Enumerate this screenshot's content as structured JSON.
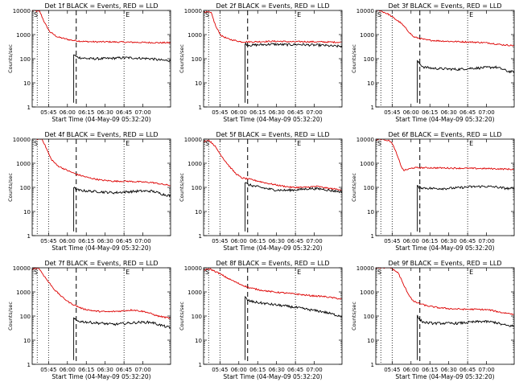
{
  "figure": {
    "ylabel": "Counts/sec",
    "xlabel": "Start Time (04-May-09 05:32:20)"
  },
  "chart_data": [
    {
      "type": "line",
      "title": "Det 1f BLACK = Events, RED = LLD",
      "xlabel": "Start Time (04-May-09 05:32:20)",
      "ylabel": "Counts/sec",
      "ylim": [
        1,
        10000
      ],
      "yscale": "log",
      "x_ticks": [
        "05:45",
        "06:00",
        "06:15",
        "06:30",
        "06:45",
        "07:00"
      ],
      "y_ticks": [
        "1",
        "10",
        "100",
        "1000",
        "10000"
      ],
      "series": [
        {
          "name": "LLD",
          "color": "#dd0000",
          "x": [
            0,
            6,
            10,
            14,
            20,
            30,
            40,
            50,
            60,
            70,
            80,
            90,
            100,
            110
          ],
          "y": [
            10000,
            9000,
            3000,
            1300,
            800,
            600,
            520,
            500,
            500,
            490,
            480,
            470,
            460,
            460
          ]
        },
        {
          "name": "Events",
          "color": "#000000",
          "x": [
            33,
            35,
            38,
            45,
            55,
            65,
            75,
            85,
            95,
            100,
            105,
            110
          ],
          "y": [
            150,
            120,
            110,
            100,
            100,
            105,
            110,
            105,
            100,
            90,
            85,
            85
          ]
        }
      ],
      "gap_minutes": [
        28,
        35
      ]
    },
    {
      "type": "line",
      "title": "Det 2f BLACK = Events, RED = LLD",
      "xlabel": "Start Time (04-May-09 05:32:20)",
      "ylabel": "Counts/sec",
      "ylim": [
        1,
        10000
      ],
      "yscale": "log",
      "x_ticks": [
        "05:45",
        "06:00",
        "06:15",
        "06:30",
        "06:45",
        "07:00"
      ],
      "y_ticks": [
        "1",
        "10",
        "100",
        "1000",
        "10000"
      ],
      "series": [
        {
          "name": "LLD",
          "color": "#dd0000",
          "x": [
            0,
            6,
            10,
            14,
            20,
            30,
            40,
            50,
            60,
            70,
            80,
            90,
            100,
            110
          ],
          "y": [
            9000,
            8000,
            2000,
            900,
            650,
            500,
            500,
            520,
            530,
            500,
            510,
            500,
            490,
            480
          ]
        },
        {
          "name": "Events",
          "color": "#000000",
          "x": [
            33,
            35,
            38,
            45,
            55,
            65,
            75,
            85,
            95,
            100,
            105,
            110
          ],
          "y": [
            420,
            380,
            360,
            380,
            400,
            380,
            390,
            370,
            360,
            340,
            330,
            330
          ]
        }
      ],
      "gap_minutes": [
        28,
        35
      ]
    },
    {
      "type": "line",
      "title": "Det 3f BLACK = Events, RED = LLD",
      "xlabel": "Start Time (04-May-09 05:32:20)",
      "ylabel": "Counts/sec",
      "ylim": [
        1,
        10000
      ],
      "yscale": "log",
      "x_ticks": [
        "05:45",
        "06:00",
        "06:15",
        "06:30",
        "06:45",
        "07:00"
      ],
      "y_ticks": [
        "1",
        "10",
        "100",
        "1000",
        "10000"
      ],
      "series": [
        {
          "name": "LLD",
          "color": "#dd0000",
          "x": [
            0,
            3,
            10,
            20,
            30,
            40,
            50,
            60,
            70,
            80,
            90,
            100,
            110
          ],
          "y": [
            10000,
            10000,
            7000,
            3000,
            800,
            600,
            550,
            520,
            500,
            480,
            450,
            380,
            350
          ]
        },
        {
          "name": "Events",
          "color": "#000000",
          "x": [
            33,
            35,
            38,
            45,
            55,
            65,
            75,
            85,
            95,
            100,
            105,
            110
          ],
          "y": [
            80,
            60,
            45,
            40,
            38,
            36,
            40,
            42,
            45,
            38,
            30,
            28
          ]
        }
      ],
      "gap_minutes": [
        28,
        35
      ]
    },
    {
      "type": "line",
      "title": "Det 4f BLACK = Events, RED = LLD",
      "xlabel": "Start Time (04-May-09 05:32:20)",
      "ylabel": "Counts/sec",
      "ylim": [
        1,
        10000
      ],
      "yscale": "log",
      "x_ticks": [
        "05:45",
        "06:00",
        "06:15",
        "06:30",
        "06:45",
        "07:00"
      ],
      "y_ticks": [
        "1",
        "10",
        "100",
        "1000",
        "10000"
      ],
      "series": [
        {
          "name": "LLD",
          "color": "#dd0000",
          "x": [
            3,
            8,
            15,
            20,
            28,
            35,
            45,
            55,
            65,
            75,
            85,
            95,
            105,
            110
          ],
          "y": [
            10000,
            10000,
            1500,
            800,
            500,
            350,
            250,
            200,
            180,
            180,
            170,
            160,
            130,
            120
          ]
        },
        {
          "name": "Events",
          "color": "#000000",
          "x": [
            33,
            35,
            38,
            45,
            55,
            65,
            75,
            85,
            95,
            100,
            105,
            110
          ],
          "y": [
            100,
            80,
            75,
            70,
            65,
            60,
            65,
            70,
            70,
            60,
            50,
            45
          ]
        }
      ],
      "gap_minutes": [
        28,
        35
      ]
    },
    {
      "type": "line",
      "title": "Det 5f BLACK = Events, RED = LLD",
      "xlabel": "Start Time (04-May-09 05:32:20)",
      "ylabel": "Counts/sec",
      "ylim": [
        1,
        10000
      ],
      "yscale": "log",
      "x_ticks": [
        "05:45",
        "06:00",
        "06:15",
        "06:30",
        "06:45",
        "07:00"
      ],
      "y_ticks": [
        "1",
        "10",
        "100",
        "1000",
        "10000"
      ],
      "series": [
        {
          "name": "LLD",
          "color": "#dd0000",
          "x": [
            0,
            4,
            8,
            12,
            16,
            20,
            25,
            30,
            40,
            50,
            60,
            70,
            80,
            90,
            100,
            110
          ],
          "y": [
            8000,
            9000,
            6000,
            3000,
            1500,
            800,
            400,
            250,
            200,
            150,
            120,
            100,
            100,
            110,
            90,
            80
          ]
        },
        {
          "name": "Events",
          "color": "#000000",
          "x": [
            33,
            35,
            38,
            45,
            55,
            65,
            75,
            85,
            95,
            100,
            105,
            110
          ],
          "y": [
            160,
            130,
            120,
            100,
            80,
            75,
            80,
            90,
            85,
            75,
            70,
            65
          ]
        }
      ],
      "gap_minutes": [
        28,
        35
      ]
    },
    {
      "type": "line",
      "title": "Det 6f BLACK = Events, RED = LLD",
      "xlabel": "Start Time (04-May-09 05:32:20)",
      "ylabel": "Counts/sec",
      "ylim": [
        1,
        10000
      ],
      "yscale": "log",
      "x_ticks": [
        "05:45",
        "06:00",
        "06:15",
        "06:30",
        "06:45",
        "07:00"
      ],
      "y_ticks": [
        "1",
        "10",
        "100",
        "1000",
        "10000"
      ],
      "series": [
        {
          "name": "LLD",
          "color": "#dd0000",
          "x": [
            0,
            3,
            6,
            12,
            15,
            20,
            22,
            25,
            30,
            40,
            50,
            60,
            70,
            80,
            90,
            100,
            110
          ],
          "y": [
            9000,
            10000,
            10000,
            8000,
            4000,
            800,
            500,
            550,
            650,
            650,
            640,
            630,
            620,
            610,
            600,
            580,
            560
          ]
        },
        {
          "name": "Events",
          "color": "#000000",
          "x": [
            33,
            35,
            38,
            45,
            55,
            65,
            75,
            85,
            95,
            100,
            105,
            110
          ],
          "y": [
            110,
            100,
            95,
            90,
            90,
            95,
            105,
            110,
            105,
            95,
            90,
            85
          ]
        }
      ],
      "gap_minutes": [
        28,
        35
      ]
    },
    {
      "type": "line",
      "title": "Det 7f BLACK = Events, RED = LLD",
      "xlabel": "Start Time (04-May-09 05:32:20)",
      "ylabel": "Counts/sec",
      "ylim": [
        1,
        10000
      ],
      "yscale": "log",
      "x_ticks": [
        "05:45",
        "06:00",
        "06:15",
        "06:30",
        "06:45",
        "07:00"
      ],
      "y_ticks": [
        "1",
        "10",
        "100",
        "1000",
        "10000"
      ],
      "series": [
        {
          "name": "LLD",
          "color": "#dd0000",
          "x": [
            0,
            5,
            12,
            18,
            24,
            30,
            40,
            50,
            60,
            70,
            80,
            90,
            100,
            110
          ],
          "y": [
            9000,
            10000,
            3000,
            1200,
            600,
            350,
            200,
            160,
            150,
            160,
            180,
            150,
            100,
            80
          ]
        },
        {
          "name": "Events",
          "color": "#000000",
          "x": [
            33,
            35,
            38,
            45,
            55,
            65,
            75,
            85,
            95,
            100,
            105,
            110
          ],
          "y": [
            80,
            65,
            60,
            55,
            50,
            45,
            50,
            55,
            55,
            45,
            38,
            32
          ]
        }
      ],
      "gap_minutes": [
        28,
        35
      ]
    },
    {
      "type": "line",
      "title": "Det 8f BLACK = Events, RED = LLD",
      "xlabel": "Start Time (04-May-09 05:32:20)",
      "ylabel": "Counts/sec",
      "ylim": [
        1,
        10000
      ],
      "yscale": "log",
      "x_ticks": [
        "05:45",
        "06:00",
        "06:15",
        "06:30",
        "06:45",
        "07:00"
      ],
      "y_ticks": [
        "1",
        "10",
        "100",
        "1000",
        "10000"
      ],
      "series": [
        {
          "name": "LLD",
          "color": "#dd0000",
          "x": [
            0,
            5,
            12,
            20,
            28,
            36,
            45,
            55,
            65,
            75,
            85,
            95,
            105,
            110
          ],
          "y": [
            8000,
            9000,
            6000,
            3500,
            2200,
            1500,
            1200,
            1000,
            900,
            800,
            700,
            650,
            550,
            500
          ]
        },
        {
          "name": "Events",
          "color": "#000000",
          "x": [
            33,
            35,
            38,
            45,
            55,
            65,
            75,
            85,
            95,
            100,
            105,
            110
          ],
          "y": [
            600,
            450,
            400,
            350,
            300,
            260,
            220,
            180,
            150,
            130,
            110,
            100
          ]
        }
      ],
      "gap_minutes": [
        28,
        35
      ]
    },
    {
      "type": "line",
      "title": "Det 9f BLACK = Events, RED = LLD",
      "xlabel": "Start Time (04-May-09 05:32:20)",
      "ylabel": "Counts/sec",
      "ylim": [
        1,
        10000
      ],
      "yscale": "log",
      "x_ticks": [
        "05:45",
        "06:00",
        "06:15",
        "06:30",
        "06:45",
        "07:00"
      ],
      "y_ticks": [
        "1",
        "10",
        "100",
        "1000",
        "10000"
      ],
      "series": [
        {
          "name": "LLD",
          "color": "#dd0000",
          "x": [
            0,
            5,
            12,
            18,
            22,
            26,
            30,
            40,
            50,
            60,
            70,
            80,
            90,
            100,
            110
          ],
          "y": [
            10000,
            10000,
            10000,
            6000,
            2000,
            800,
            400,
            270,
            220,
            200,
            190,
            190,
            180,
            140,
            120
          ]
        },
        {
          "name": "Events",
          "color": "#000000",
          "x": [
            33,
            35,
            38,
            45,
            55,
            65,
            75,
            85,
            95,
            100,
            105,
            110
          ],
          "y": [
            100,
            70,
            55,
            50,
            50,
            50,
            55,
            60,
            55,
            45,
            40,
            38
          ]
        }
      ],
      "gap_minutes": [
        28,
        35
      ]
    }
  ]
}
